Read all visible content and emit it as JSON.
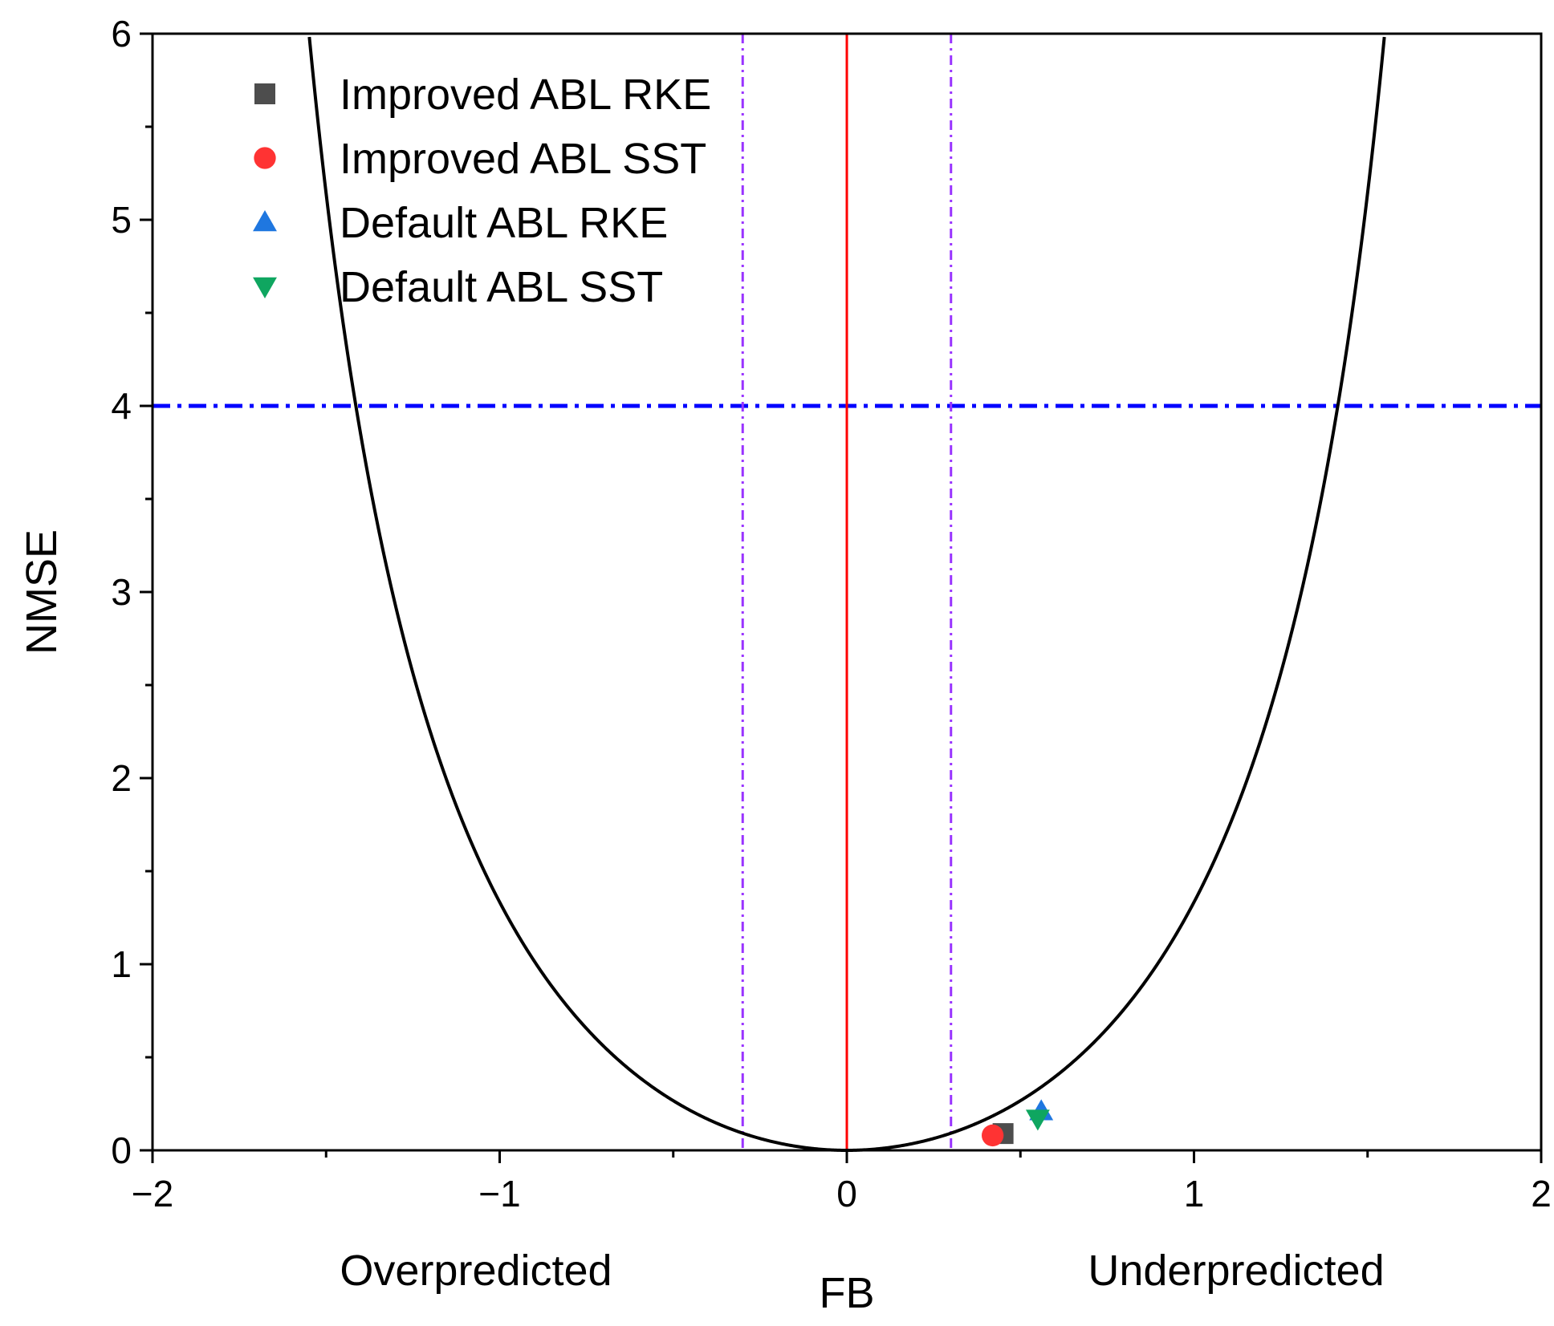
{
  "chart_data": {
    "type": "scatter",
    "xlabel": "FB",
    "ylabel": "NMSE",
    "xlim": [
      -2,
      2
    ],
    "ylim": [
      0,
      6
    ],
    "x_major_ticks": [
      -2,
      -1,
      0,
      1,
      2
    ],
    "x_tick_labels": [
      "−2",
      "−1",
      "0",
      "1",
      "2"
    ],
    "y_major_ticks": [
      0,
      1,
      2,
      3,
      4,
      5,
      6
    ],
    "y_tick_labels": [
      "0",
      "1",
      "2",
      "3",
      "4",
      "5",
      "6"
    ],
    "region_labels": {
      "left": "Overpredicted",
      "right": "Underpredicted"
    },
    "reference_lines": {
      "curve": {
        "description": "minimum NMSE = 4FB^2/(4-FB^2)",
        "color": "#000000"
      },
      "zero_bias_x": 0,
      "zero_bias_color": "#ff0000",
      "fb_bounds_x": [
        -0.3,
        0.3
      ],
      "fb_bounds_color": "#9933ff",
      "nmse_limit_y": 4,
      "nmse_limit_color": "#0000ff"
    },
    "legend_position": "top-left",
    "series": [
      {
        "name": "Improved ABL RKE",
        "marker": "square",
        "color": "#4d4d4d",
        "x": [
          0.45
        ],
        "y": [
          0.09
        ]
      },
      {
        "name": "Improved ABL SST",
        "marker": "circle",
        "color": "#ff3333",
        "x": [
          0.42
        ],
        "y": [
          0.08
        ]
      },
      {
        "name": "Default ABL RKE",
        "marker": "triangle-up",
        "color": "#1f77e0",
        "x": [
          0.56
        ],
        "y": [
          0.21
        ]
      },
      {
        "name": "Default ABL SST",
        "marker": "triangle-down",
        "color": "#0fa660",
        "x": [
          0.55
        ],
        "y": [
          0.17
        ]
      }
    ]
  }
}
